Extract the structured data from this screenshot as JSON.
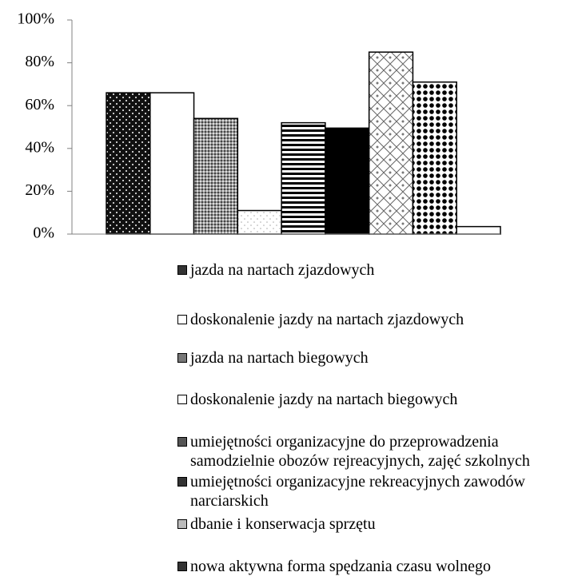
{
  "chart_data": {
    "type": "bar",
    "categories": [
      "jazda na nartach zjazdowych",
      "doskonalenie jazdy na nartach zjazdowych",
      "jazda na nartach biegowych",
      "doskonalenie jazdy na nartach biegowych",
      "umiejętności organizacyjne do przeprowadzenia samodzielnie obozów rejreacyjnych, zajęć szkolnych",
      "umiejętności organizacyjne rekreacyjnych zawodów narciarskich",
      "dbanie i konserwacja sprzętu",
      "nowa aktywna forma spędzania czasu wolnego",
      null
    ],
    "values": [
      66,
      66,
      54,
      11,
      52,
      49.5,
      85,
      71,
      3.5
    ],
    "ylim": [
      0,
      100
    ],
    "yticks": [
      {
        "value": 0,
        "label": "0%"
      },
      {
        "value": 20,
        "label": "20%"
      },
      {
        "value": 40,
        "label": "40%"
      },
      {
        "value": 60,
        "label": "60%"
      },
      {
        "value": 80,
        "label": "80%"
      },
      {
        "value": 100,
        "label": "100%"
      }
    ],
    "grid": false
  }
}
